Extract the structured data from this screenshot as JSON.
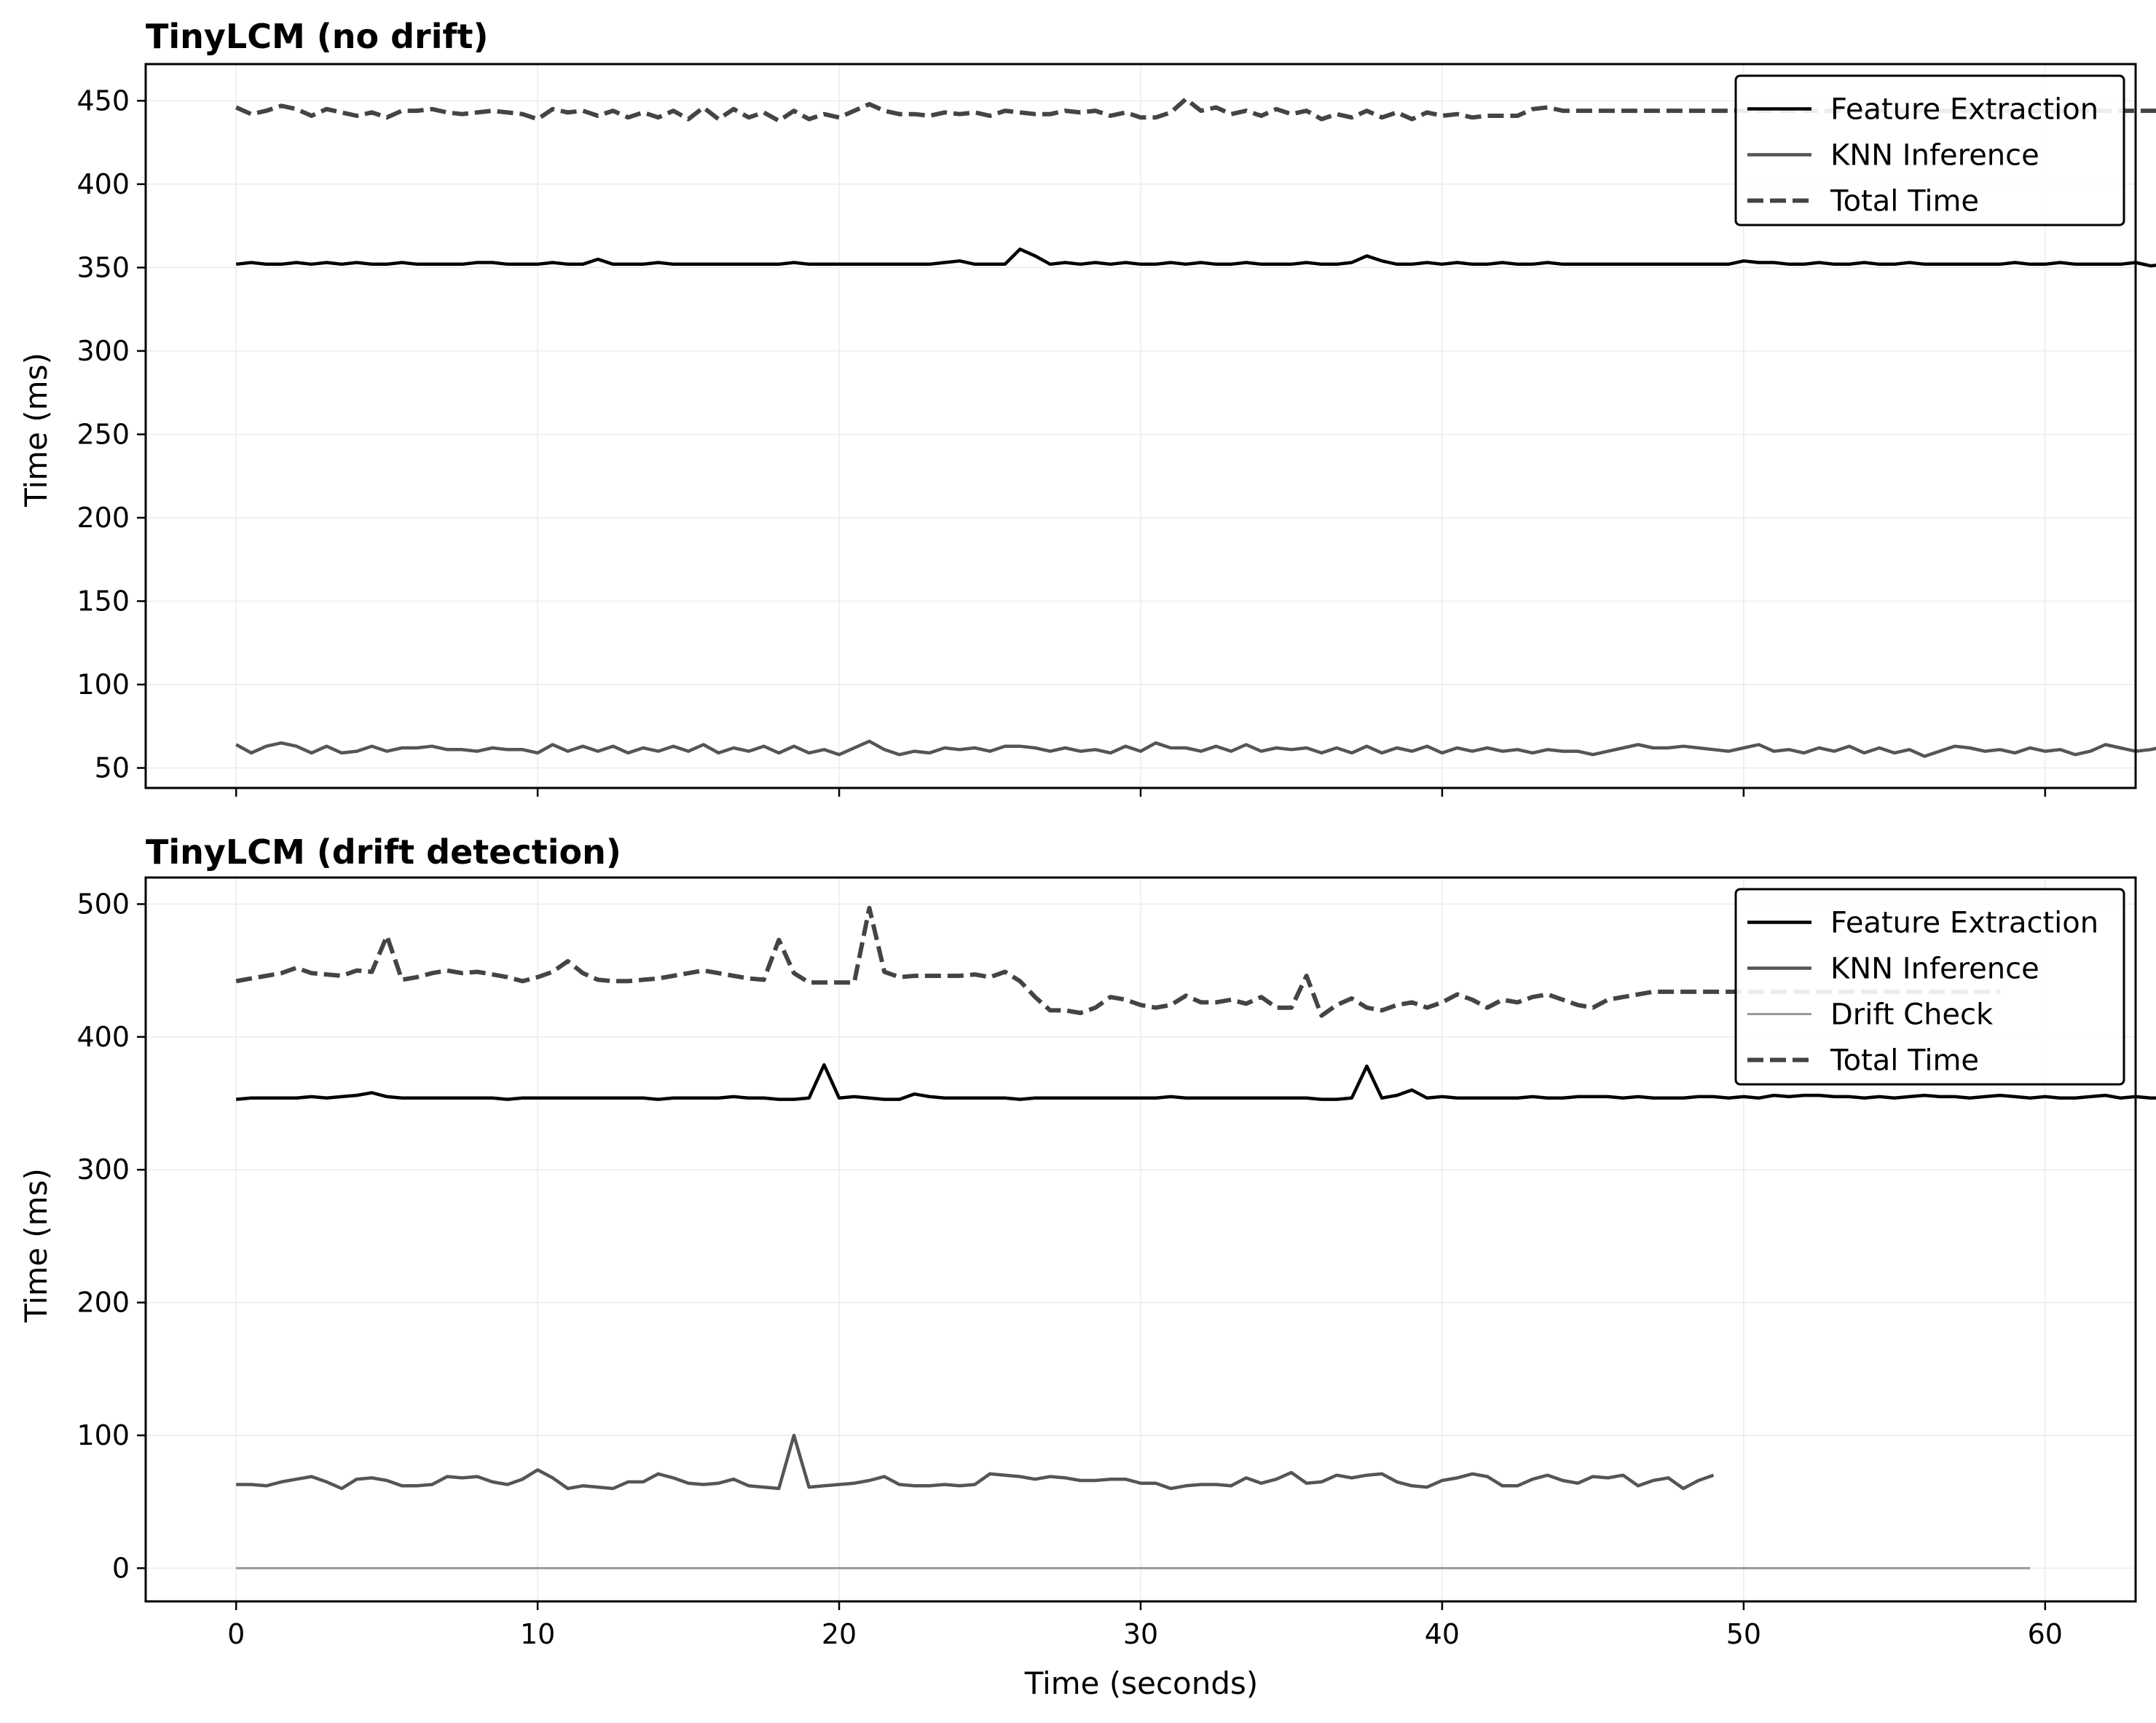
{
  "chart_data": [
    {
      "type": "line",
      "title": "TinyLCM (no drift)",
      "xlabel": "",
      "ylabel": "Time (ms)",
      "xlim": [
        -3,
        63
      ],
      "ylim": [
        38,
        472
      ],
      "xticks": [
        0,
        10,
        20,
        30,
        40,
        50,
        60
      ],
      "yticks": [
        50,
        100,
        150,
        200,
        250,
        300,
        350,
        400,
        450
      ],
      "grid": true,
      "legend_position": "top-right",
      "series": [
        {
          "name": "Feature Extraction",
          "color": "#000000",
          "style": "solid",
          "x_start": 0,
          "x_step": 0.5,
          "values": [
            352,
            353,
            352,
            352,
            353,
            352,
            353,
            352,
            353,
            352,
            352,
            353,
            352,
            352,
            352,
            352,
            353,
            353,
            352,
            352,
            352,
            353,
            352,
            352,
            355,
            352,
            352,
            352,
            353,
            352,
            352,
            352,
            352,
            352,
            352,
            352,
            352,
            353,
            352,
            352,
            352,
            352,
            352,
            352,
            352,
            352,
            352,
            353,
            354,
            352,
            352,
            352,
            361,
            357,
            352,
            353,
            352,
            353,
            352,
            353,
            352,
            352,
            353,
            352,
            353,
            352,
            352,
            353,
            352,
            352,
            352,
            353,
            352,
            352,
            353,
            357,
            354,
            352,
            352,
            353,
            352,
            353,
            352,
            352,
            353,
            352,
            352,
            353,
            352,
            352,
            352,
            352,
            352,
            352,
            352,
            352,
            352,
            352,
            352,
            352,
            354,
            353,
            353,
            352,
            352,
            353,
            352,
            352,
            353,
            352,
            352,
            353,
            352,
            352,
            352,
            352,
            352,
            352,
            353,
            352,
            352,
            353,
            352,
            352,
            352,
            352,
            353,
            351,
            352,
            351,
            352,
            352,
            353,
            352,
            351,
            353,
            352,
            352,
            352,
            353,
            352,
            351,
            353
          ]
        },
        {
          "name": "KNN Inference",
          "color": "#555555",
          "style": "solid",
          "x_start": 0,
          "x_step": 0.5,
          "values": [
            64,
            59,
            63,
            65,
            63,
            59,
            63,
            59,
            60,
            63,
            60,
            62,
            62,
            63,
            61,
            61,
            60,
            62,
            61,
            61,
            59,
            64,
            60,
            63,
            60,
            63,
            59,
            62,
            60,
            63,
            60,
            64,
            59,
            62,
            60,
            63,
            59,
            63,
            59,
            61,
            58,
            62,
            66,
            61,
            58,
            60,
            59,
            62,
            61,
            62,
            60,
            63,
            63,
            62,
            60,
            62,
            60,
            61,
            59,
            63,
            60,
            65,
            62,
            62,
            60,
            63,
            60,
            64,
            60,
            62,
            61,
            62,
            59,
            62,
            59,
            63,
            59,
            62,
            60,
            63,
            59,
            62,
            60,
            62,
            60,
            61,
            59,
            61,
            60,
            60,
            58,
            60,
            62,
            64,
            62,
            62,
            63,
            62,
            61,
            60,
            62,
            64,
            60,
            61,
            59,
            62,
            60,
            63,
            59,
            62,
            59,
            61,
            57,
            60,
            63,
            62,
            60,
            61,
            59,
            62,
            60,
            61,
            58,
            60,
            64,
            62,
            60,
            61,
            63,
            62
          ]
        },
        {
          "name": "Total Time",
          "color": "#444444",
          "style": "dashed",
          "x_start": 0,
          "x_step": 0.5,
          "values": [
            446,
            442,
            444,
            447,
            445,
            441,
            445,
            443,
            441,
            443,
            440,
            444,
            444,
            445,
            443,
            442,
            443,
            444,
            443,
            442,
            439,
            445,
            443,
            444,
            441,
            444,
            440,
            443,
            440,
            444,
            439,
            446,
            439,
            445,
            440,
            443,
            438,
            444,
            439,
            442,
            440,
            444,
            448,
            444,
            442,
            442,
            441,
            443,
            442,
            443,
            441,
            444,
            443,
            442,
            442,
            444,
            443,
            444,
            441,
            443,
            440,
            440,
            443,
            451,
            444,
            446,
            442,
            444,
            441,
            445,
            442,
            444,
            439,
            442,
            440,
            444,
            440,
            443,
            439,
            443,
            441,
            442,
            440,
            441,
            441,
            441,
            445,
            446,
            444,
            444,
            444,
            444,
            444,
            444,
            444,
            444,
            444,
            444,
            444,
            444,
            444,
            444,
            444,
            444,
            444,
            444,
            444,
            444,
            444,
            444,
            444,
            444,
            444,
            444,
            444,
            444,
            444,
            444,
            444,
            444,
            444,
            444,
            444,
            444,
            444,
            444,
            444,
            444,
            444,
            444
          ]
        }
      ]
    },
    {
      "type": "line",
      "title": "TinyLCM (drift detection)",
      "xlabel": "Time (seconds)",
      "ylabel": "Time (ms)",
      "xlim": [
        -3,
        63
      ],
      "ylim": [
        -25,
        520
      ],
      "xticks": [
        0,
        10,
        20,
        30,
        40,
        50,
        60
      ],
      "yticks": [
        0,
        100,
        200,
        300,
        400,
        500
      ],
      "grid": true,
      "legend_position": "top-right",
      "series": [
        {
          "name": "Feature Extraction",
          "color": "#000000",
          "style": "solid",
          "x_start": 0,
          "x_step": 0.5,
          "values": [
            353,
            354,
            354,
            354,
            354,
            355,
            354,
            355,
            356,
            358,
            355,
            354,
            354,
            354,
            354,
            354,
            354,
            354,
            353,
            354,
            354,
            354,
            354,
            354,
            354,
            354,
            354,
            354,
            353,
            354,
            354,
            354,
            354,
            355,
            354,
            354,
            353,
            353,
            354,
            379,
            354,
            355,
            354,
            353,
            353,
            357,
            355,
            354,
            354,
            354,
            354,
            354,
            353,
            354,
            354,
            354,
            354,
            354,
            354,
            354,
            354,
            354,
            355,
            354,
            354,
            354,
            354,
            354,
            354,
            354,
            354,
            354,
            353,
            353,
            354,
            378,
            354,
            356,
            360,
            354,
            355,
            354,
            354,
            354,
            354,
            354,
            355,
            354,
            354,
            355,
            355,
            355,
            354,
            355,
            354,
            354,
            354,
            355,
            355,
            354,
            355,
            354,
            356,
            355,
            356,
            356,
            355,
            355,
            354,
            355,
            354,
            355,
            356,
            355,
            355,
            354,
            355,
            356,
            355,
            354,
            355,
            354,
            354,
            355,
            356,
            354,
            355,
            354,
            354,
            356,
            355,
            354,
            355,
            356,
            354
          ]
        },
        {
          "name": "KNN Inference",
          "color": "#555555",
          "style": "solid",
          "x_start": 0,
          "x_step": 0.5,
          "values": [
            63,
            63,
            62,
            65,
            67,
            69,
            65,
            60,
            67,
            68,
            66,
            62,
            62,
            63,
            69,
            68,
            69,
            65,
            63,
            67,
            74,
            68,
            60,
            62,
            61,
            60,
            65,
            65,
            71,
            68,
            64,
            63,
            64,
            67,
            62,
            61,
            60,
            100,
            61,
            62,
            63,
            64,
            66,
            69,
            63,
            62,
            62,
            63,
            62,
            63,
            71,
            70,
            69,
            67,
            69,
            68,
            66,
            66,
            67,
            67,
            64,
            64,
            60,
            62,
            63,
            63,
            62,
            68,
            64,
            67,
            72,
            64,
            65,
            70,
            68,
            70,
            71,
            65,
            62,
            61,
            66,
            68,
            71,
            69,
            62,
            62,
            67,
            70,
            66,
            64,
            69,
            68,
            70,
            62,
            66,
            68,
            60,
            66,
            70
          ]
        },
        {
          "name": "Drift Check",
          "color": "#999999",
          "style": "solid",
          "x_start": 0,
          "x_step": 0.5,
          "values": [
            0,
            0,
            0,
            0,
            0,
            0,
            0,
            0,
            0,
            0,
            0,
            0,
            0,
            0,
            0,
            0,
            0,
            0,
            0,
            0,
            0,
            0,
            0,
            0,
            0,
            0,
            0,
            0,
            0,
            0,
            0,
            0,
            0,
            0,
            0,
            0,
            0,
            0,
            0,
            0,
            0,
            0,
            0,
            0,
            0,
            0,
            0,
            0,
            0,
            0,
            0,
            0,
            0,
            0,
            0,
            0,
            0,
            0,
            0,
            0,
            0,
            0,
            0,
            0,
            0,
            0,
            0,
            0,
            0,
            0,
            0,
            0,
            0,
            0,
            0,
            0,
            0,
            0,
            0,
            0,
            0,
            0,
            0,
            0,
            0,
            0,
            0,
            0,
            0,
            0,
            0,
            0,
            0,
            0,
            0,
            0,
            0,
            0,
            0,
            0,
            0,
            0,
            0,
            0,
            0,
            0,
            0,
            0,
            0,
            0,
            0,
            0,
            0,
            0,
            0,
            0,
            0,
            0,
            0,
            0
          ]
        },
        {
          "name": "Total Time",
          "color": "#444444",
          "style": "dashed",
          "x_start": 0,
          "x_step": 0.5,
          "values": [
            442,
            444,
            446,
            448,
            452,
            448,
            447,
            446,
            450,
            449,
            476,
            443,
            445,
            448,
            450,
            448,
            449,
            447,
            445,
            442,
            445,
            449,
            457,
            448,
            443,
            442,
            442,
            443,
            444,
            446,
            448,
            450,
            448,
            446,
            444,
            443,
            473,
            448,
            441,
            441,
            441,
            441,
            497,
            449,
            445,
            446,
            446,
            446,
            446,
            447,
            445,
            449,
            442,
            430,
            420,
            420,
            418,
            422,
            430,
            428,
            424,
            422,
            424,
            431,
            426,
            426,
            428,
            425,
            430,
            422,
            422,
            446,
            416,
            424,
            429,
            422,
            420,
            424,
            426,
            422,
            426,
            432,
            428,
            422,
            428,
            426,
            430,
            432,
            428,
            424,
            422,
            428,
            430,
            432,
            434,
            434,
            434,
            434,
            434,
            434,
            434,
            434,
            434,
            434,
            434,
            434,
            434,
            434,
            434,
            434,
            434,
            434,
            434,
            434,
            434,
            434,
            434,
            434
          ]
        }
      ]
    }
  ]
}
